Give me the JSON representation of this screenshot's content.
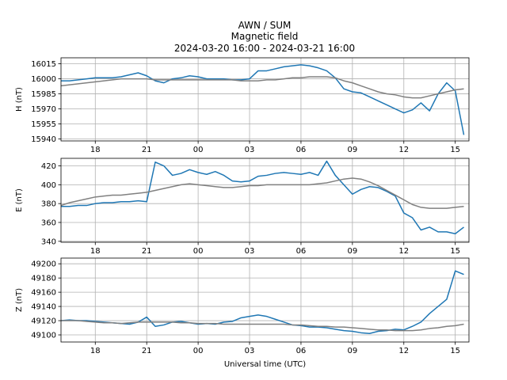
{
  "figure": {
    "title": "AWN / SUM",
    "subtitle": "Magnetic field",
    "period": "2024-03-20 16:00 - 2024-03-21 16:00"
  },
  "chart_data": [
    {
      "type": "line",
      "ylabel": "H (nT)",
      "grid": true,
      "x": [
        16,
        16.5,
        17,
        17.5,
        18,
        18.5,
        19,
        19.5,
        20,
        20.5,
        21,
        21.5,
        22,
        22.5,
        23,
        23.5,
        24,
        24.5,
        25,
        25.5,
        26,
        26.5,
        27,
        27.5,
        28,
        28.5,
        29,
        29.5,
        30,
        30.5,
        31,
        31.5,
        32,
        32.5,
        33,
        33.5,
        34,
        34.5,
        35,
        35.5,
        36,
        36.5,
        37,
        37.5,
        38,
        38.5,
        39,
        39.5
      ],
      "xlim": [
        16.0,
        39.8
      ],
      "xticks": [
        18,
        21,
        {
          "value": 24,
          "label": "00"
        },
        {
          "value": 27,
          "label": "03"
        },
        {
          "value": 30,
          "label": "06"
        },
        {
          "value": 33,
          "label": "09"
        },
        {
          "value": 36,
          "label": "12"
        },
        {
          "value": 39,
          "label": "15"
        }
      ],
      "ylim": [
        15938,
        16021
      ],
      "yticks": [
        15940,
        15955,
        15970,
        15985,
        16000,
        16015
      ],
      "series": [
        {
          "color": "#1f77b4",
          "values": [
            15998,
            15998,
            15999,
            16000,
            16001,
            16001,
            16001,
            16002,
            16004,
            16006,
            16003,
            15998,
            15996,
            16000,
            16001,
            16003,
            16002,
            16000,
            16000,
            16000,
            15999,
            15999,
            16000,
            16008,
            16008,
            16010,
            16012,
            16013,
            16014,
            16013,
            16011,
            16008,
            16001,
            15990,
            15987,
            15986,
            15982,
            15978,
            15974,
            15970,
            15966,
            15969,
            15976,
            15968,
            15985,
            15996,
            15988,
            15944
          ]
        },
        {
          "color": "#808080",
          "values": [
            15993,
            15994,
            15995,
            15996,
            15997,
            15998,
            15999,
            16000,
            16000,
            16000,
            16000,
            15999,
            15999,
            15999,
            15999,
            15999,
            15999,
            15999,
            15999,
            15999,
            15999,
            15998,
            15998,
            15998,
            15999,
            15999,
            16000,
            16001,
            16001,
            16002,
            16002,
            16002,
            16001,
            15998,
            15996,
            15993,
            15990,
            15987,
            15985,
            15984,
            15982,
            15981,
            15981,
            15983,
            15985,
            15987,
            15989,
            15990
          ]
        }
      ]
    },
    {
      "type": "line",
      "ylabel": "E (nT)",
      "grid": true,
      "x": [
        16,
        16.5,
        17,
        17.5,
        18,
        18.5,
        19,
        19.5,
        20,
        20.5,
        21,
        21.5,
        22,
        22.5,
        23,
        23.5,
        24,
        24.5,
        25,
        25.5,
        26,
        26.5,
        27,
        27.5,
        28,
        28.5,
        29,
        29.5,
        30,
        30.5,
        31,
        31.5,
        32,
        32.5,
        33,
        33.5,
        34,
        34.5,
        35,
        35.5,
        36,
        36.5,
        37,
        37.5,
        38,
        38.5,
        39,
        39.5
      ],
      "xlim": [
        16.0,
        39.8
      ],
      "xticks": [
        18,
        21,
        {
          "value": 24,
          "label": "00"
        },
        {
          "value": 27,
          "label": "03"
        },
        {
          "value": 30,
          "label": "06"
        },
        {
          "value": 33,
          "label": "09"
        },
        {
          "value": 36,
          "label": "12"
        },
        {
          "value": 39,
          "label": "15"
        }
      ],
      "ylim": [
        339,
        428
      ],
      "yticks": [
        340,
        360,
        380,
        400,
        420
      ],
      "series": [
        {
          "color": "#1f77b4",
          "values": [
            377,
            377,
            378,
            378,
            380,
            381,
            381,
            382,
            382,
            383,
            382,
            424,
            420,
            410,
            412,
            416,
            413,
            411,
            414,
            410,
            404,
            403,
            404,
            409,
            410,
            412,
            413,
            412,
            411,
            413,
            410,
            425,
            410,
            400,
            390,
            395,
            398,
            397,
            393,
            388,
            370,
            365,
            352,
            355,
            350,
            350,
            348,
            355
          ]
        },
        {
          "color": "#808080",
          "values": [
            378,
            381,
            383,
            385,
            387,
            388,
            389,
            389,
            390,
            391,
            392,
            394,
            396,
            398,
            400,
            401,
            400,
            399,
            398,
            397,
            397,
            398,
            399,
            399,
            400,
            400,
            400,
            400,
            400,
            400,
            401,
            402,
            404,
            406,
            407,
            406,
            403,
            399,
            394,
            389,
            384,
            379,
            376,
            375,
            375,
            375,
            376,
            377
          ]
        }
      ]
    },
    {
      "type": "line",
      "ylabel": "Z (nT)",
      "xlabel": "Universal time (UTC)",
      "grid": true,
      "x": [
        16,
        16.5,
        17,
        17.5,
        18,
        18.5,
        19,
        19.5,
        20,
        20.5,
        21,
        21.5,
        22,
        22.5,
        23,
        23.5,
        24,
        24.5,
        25,
        25.5,
        26,
        26.5,
        27,
        27.5,
        28,
        28.5,
        29,
        29.5,
        30,
        30.5,
        31,
        31.5,
        32,
        32.5,
        33,
        33.5,
        34,
        34.5,
        35,
        35.5,
        36,
        36.5,
        37,
        37.5,
        38,
        38.5,
        39,
        39.5
      ],
      "xlim": [
        16.0,
        39.8
      ],
      "xticks": [
        18,
        21,
        {
          "value": 24,
          "label": "00"
        },
        {
          "value": 27,
          "label": "03"
        },
        {
          "value": 30,
          "label": "06"
        },
        {
          "value": 33,
          "label": "09"
        },
        {
          "value": 36,
          "label": "12"
        },
        {
          "value": 39,
          "label": "15"
        }
      ],
      "ylim": [
        49090,
        49208
      ],
      "yticks": [
        49100,
        49120,
        49140,
        49160,
        49180,
        49200
      ],
      "series": [
        {
          "color": "#1f77b4",
          "values": [
            49120,
            49121,
            49120,
            49120,
            49119,
            49118,
            49117,
            49116,
            49115,
            49118,
            49125,
            49112,
            49114,
            49118,
            49119,
            49117,
            49115,
            49116,
            49115,
            49118,
            49119,
            49124,
            49126,
            49128,
            49126,
            49122,
            49118,
            49114,
            49113,
            49111,
            49111,
            49110,
            49108,
            49106,
            49105,
            49103,
            49102,
            49105,
            49106,
            49108,
            49107,
            49112,
            49118,
            49130,
            49140,
            49150,
            49190,
            49185
          ]
        },
        {
          "color": "#808080",
          "values": [
            49120,
            49120,
            49120,
            49119,
            49118,
            49117,
            49117,
            49116,
            49117,
            49118,
            49118,
            49118,
            49118,
            49118,
            49117,
            49117,
            49116,
            49116,
            49116,
            49115,
            49115,
            49115,
            49115,
            49115,
            49115,
            49115,
            49115,
            49114,
            49114,
            49113,
            49112,
            49112,
            49111,
            49111,
            49110,
            49109,
            49108,
            49107,
            49107,
            49106,
            49106,
            49106,
            49107,
            49109,
            49110,
            49112,
            49113,
            49115
          ]
        }
      ]
    }
  ]
}
